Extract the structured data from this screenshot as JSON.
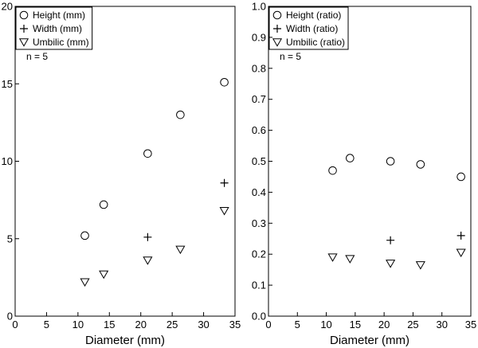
{
  "chart_data": [
    {
      "type": "scatter",
      "xlabel": "Diameter (mm)",
      "ylabel": "",
      "xlim": [
        0,
        35
      ],
      "ylim": [
        0,
        20
      ],
      "xticks": [
        0,
        5,
        10,
        15,
        20,
        25,
        30,
        35
      ],
      "yticks": [
        0,
        5,
        10,
        15,
        20
      ],
      "xtick_labels": [
        "0",
        "5",
        "10",
        "15",
        "20",
        "25",
        "30",
        "35"
      ],
      "ytick_labels": [
        "0",
        "5",
        "10",
        "15",
        "20"
      ],
      "grid": false,
      "legend_position": "top-left",
      "annotation": "n = 5",
      "series": [
        {
          "name": "Height (mm)",
          "marker": "circle",
          "x": [
            11.1,
            14.1,
            21.1,
            26.3,
            33.3
          ],
          "y": [
            5.2,
            7.2,
            10.5,
            13.0,
            15.1
          ]
        },
        {
          "name": "Width (mm)",
          "marker": "plus",
          "x": [
            21.1,
            33.3
          ],
          "y": [
            5.1,
            8.6
          ]
        },
        {
          "name": "Umbilic (mm)",
          "marker": "triangle-down",
          "x": [
            11.1,
            14.1,
            21.1,
            26.3,
            33.3
          ],
          "y": [
            2.2,
            2.7,
            3.6,
            4.3,
            6.8
          ]
        }
      ]
    },
    {
      "type": "scatter",
      "xlabel": "Diameter (mm)",
      "ylabel": "",
      "xlim": [
        0,
        35
      ],
      "ylim": [
        0,
        1.0
      ],
      "xticks": [
        0,
        5,
        10,
        15,
        20,
        25,
        30,
        35
      ],
      "yticks": [
        0,
        0.1,
        0.2,
        0.3,
        0.4,
        0.5,
        0.6,
        0.7,
        0.8,
        0.9,
        1.0
      ],
      "xtick_labels": [
        "0",
        "5",
        "10",
        "15",
        "20",
        "25",
        "30",
        "35"
      ],
      "ytick_labels": [
        "0.0",
        "0.1",
        "0.2",
        "0.3",
        "0.4",
        "0.5",
        "0.6",
        "0.7",
        "0.8",
        "0.9",
        "1.0"
      ],
      "grid": false,
      "legend_position": "top-left",
      "annotation": "n = 5",
      "series": [
        {
          "name": "Height (ratio)",
          "marker": "circle",
          "x": [
            11.1,
            14.1,
            21.1,
            26.3,
            33.3
          ],
          "y": [
            0.47,
            0.51,
            0.5,
            0.49,
            0.45
          ]
        },
        {
          "name": "Width (ratio)",
          "marker": "plus",
          "x": [
            21.1,
            33.3
          ],
          "y": [
            0.245,
            0.26
          ]
        },
        {
          "name": "Umbilic (ratio)",
          "marker": "triangle-down",
          "x": [
            11.1,
            14.1,
            21.1,
            26.3,
            33.3
          ],
          "y": [
            0.19,
            0.185,
            0.17,
            0.165,
            0.205
          ]
        }
      ]
    }
  ]
}
